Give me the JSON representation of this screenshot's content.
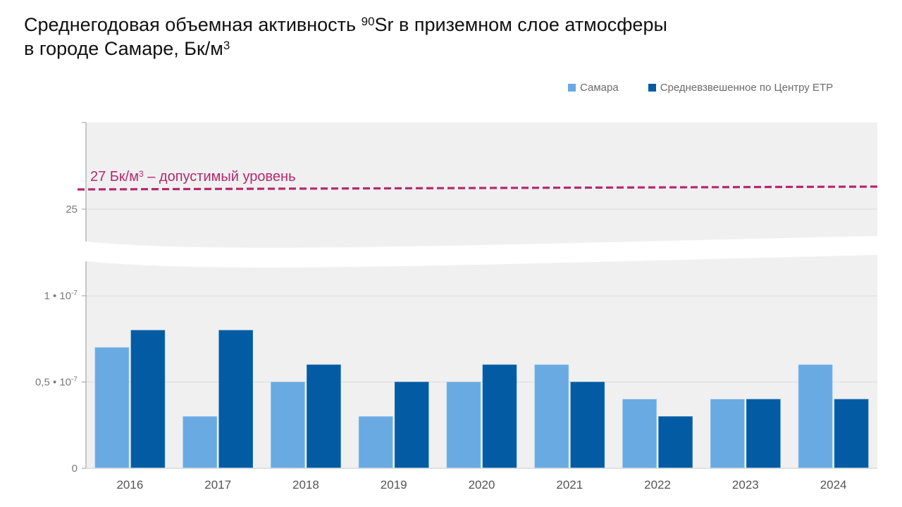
{
  "title": {
    "line1_pre": "Среднегодовая объемная активность ",
    "line1_sup": "90",
    "line1_post": "Sr в приземном слое атмосферы",
    "line2_pre": "в городе Самаре, Бк/м",
    "line2_sup": "3"
  },
  "colors": {
    "samara": "#6aaae2",
    "center": "#035ca3",
    "limit": "#b5296e",
    "plot_bg": "#f0f0f0"
  },
  "legend": [
    {
      "label": "Самара"
    },
    {
      "label": "Средневзвешенное по Центру ЕТР"
    }
  ],
  "limit": {
    "label_pre": "27 Бк/м",
    "label_sup": "3",
    "label_post": " – допустимый уровень",
    "value": 27
  },
  "chart_data": {
    "type": "bar",
    "title": "Среднегодовая объемная активность 90Sr в приземном слое атмосферы в городе Самаре, Бк/м3",
    "xlabel": "",
    "ylabel": "",
    "categories": [
      "2016",
      "2017",
      "2018",
      "2019",
      "2020",
      "2021",
      "2022",
      "2023",
      "2024"
    ],
    "series": [
      {
        "name": "Самара",
        "values": [
          7e-08,
          3e-08,
          5e-08,
          3e-08,
          5e-08,
          6e-08,
          4e-08,
          4e-08,
          6e-08
        ]
      },
      {
        "name": "Средневзвешенное по Центру ЕТР",
        "values": [
          8e-08,
          8e-08,
          6e-08,
          5e-08,
          6e-08,
          5e-08,
          3e-08,
          4e-08,
          4e-08
        ]
      }
    ],
    "ylim_lower": [
      0,
      1.2e-07
    ],
    "ylim_upper": [
      25,
      28
    ],
    "axis_break": true,
    "yticks": [
      {
        "value": 0,
        "label": "0"
      },
      {
        "value": 5e-08,
        "label": "0,5 • 10",
        "exp": "-7"
      },
      {
        "value": 1e-07,
        "label": "1 • 10",
        "exp": "-7"
      },
      {
        "value": 25,
        "label": "25"
      }
    ],
    "reference_line": {
      "value": 27,
      "label": "27 Бк/м3 – допустимый уровень",
      "style": "dashed"
    },
    "legend_position": "top-right",
    "grid": true
  }
}
